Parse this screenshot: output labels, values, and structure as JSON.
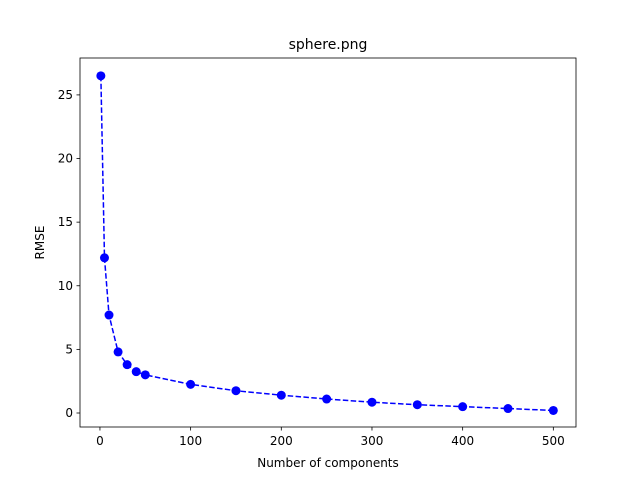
{
  "chart_data": {
    "type": "line",
    "title": "sphere.png",
    "xlabel": "Number of components",
    "ylabel": "RMSE",
    "xlim": [
      -22,
      525
    ],
    "ylim": [
      -1.1,
      27.9
    ],
    "xticks": [
      0,
      100,
      200,
      300,
      400,
      500
    ],
    "yticks": [
      0,
      5,
      10,
      15,
      20,
      25
    ],
    "grid": false,
    "series": [
      {
        "color": "#0000ff",
        "line_style": "dashed",
        "marker": "circle",
        "x": [
          1,
          5,
          10,
          20,
          30,
          40,
          50,
          100,
          150,
          200,
          250,
          300,
          350,
          400,
          450,
          500
        ],
        "y": [
          26.5,
          12.2,
          7.7,
          4.8,
          3.8,
          3.25,
          3.0,
          2.25,
          1.75,
          1.4,
          1.1,
          0.85,
          0.65,
          0.5,
          0.35,
          0.2
        ]
      }
    ]
  }
}
